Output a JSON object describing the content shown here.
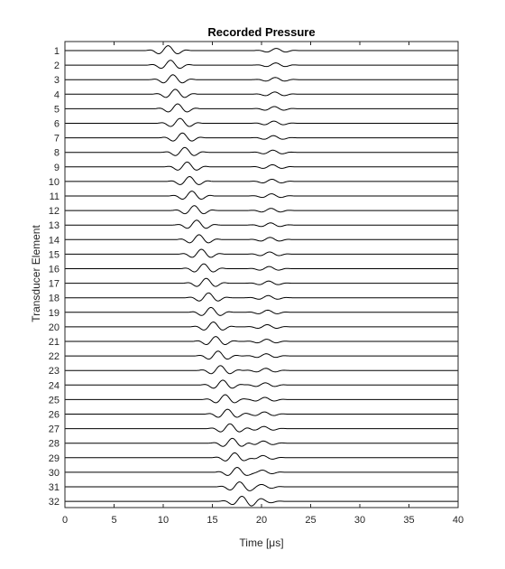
{
  "chart_data": {
    "type": "line",
    "title": "Recorded Pressure",
    "xlabel": "Time [μs]",
    "ylabel": "Transducer Element",
    "xlim": [
      0,
      40
    ],
    "xticks": [
      "0",
      "5",
      "10",
      "15",
      "20",
      "25",
      "30",
      "35",
      "40"
    ],
    "x_unit": "μs",
    "grid": false,
    "legend": "none",
    "line_color": "#000000",
    "series_labels": [
      "1",
      "2",
      "3",
      "4",
      "5",
      "6",
      "7",
      "8",
      "9",
      "10",
      "11",
      "12",
      "13",
      "14",
      "15",
      "16",
      "17",
      "18",
      "19",
      "20",
      "21",
      "22",
      "23",
      "24",
      "25",
      "26",
      "27",
      "28",
      "29",
      "30",
      "31",
      "32"
    ],
    "wave_model": {
      "signal_start_us": 7,
      "signal_end_us": 26,
      "primary_pulse": {
        "center_us_first": 10.5,
        "center_us_last": 18.0,
        "carrier_period_us": 2.1,
        "envelope_halfwidth_us": 2.5
      },
      "secondary_pulse": {
        "center_us_first": 21.5,
        "center_us_last": 20.0,
        "carrier_period_us": 2.1,
        "envelope_halfwidth_us": 2.5,
        "relative_amplitude": 0.45
      }
    }
  }
}
